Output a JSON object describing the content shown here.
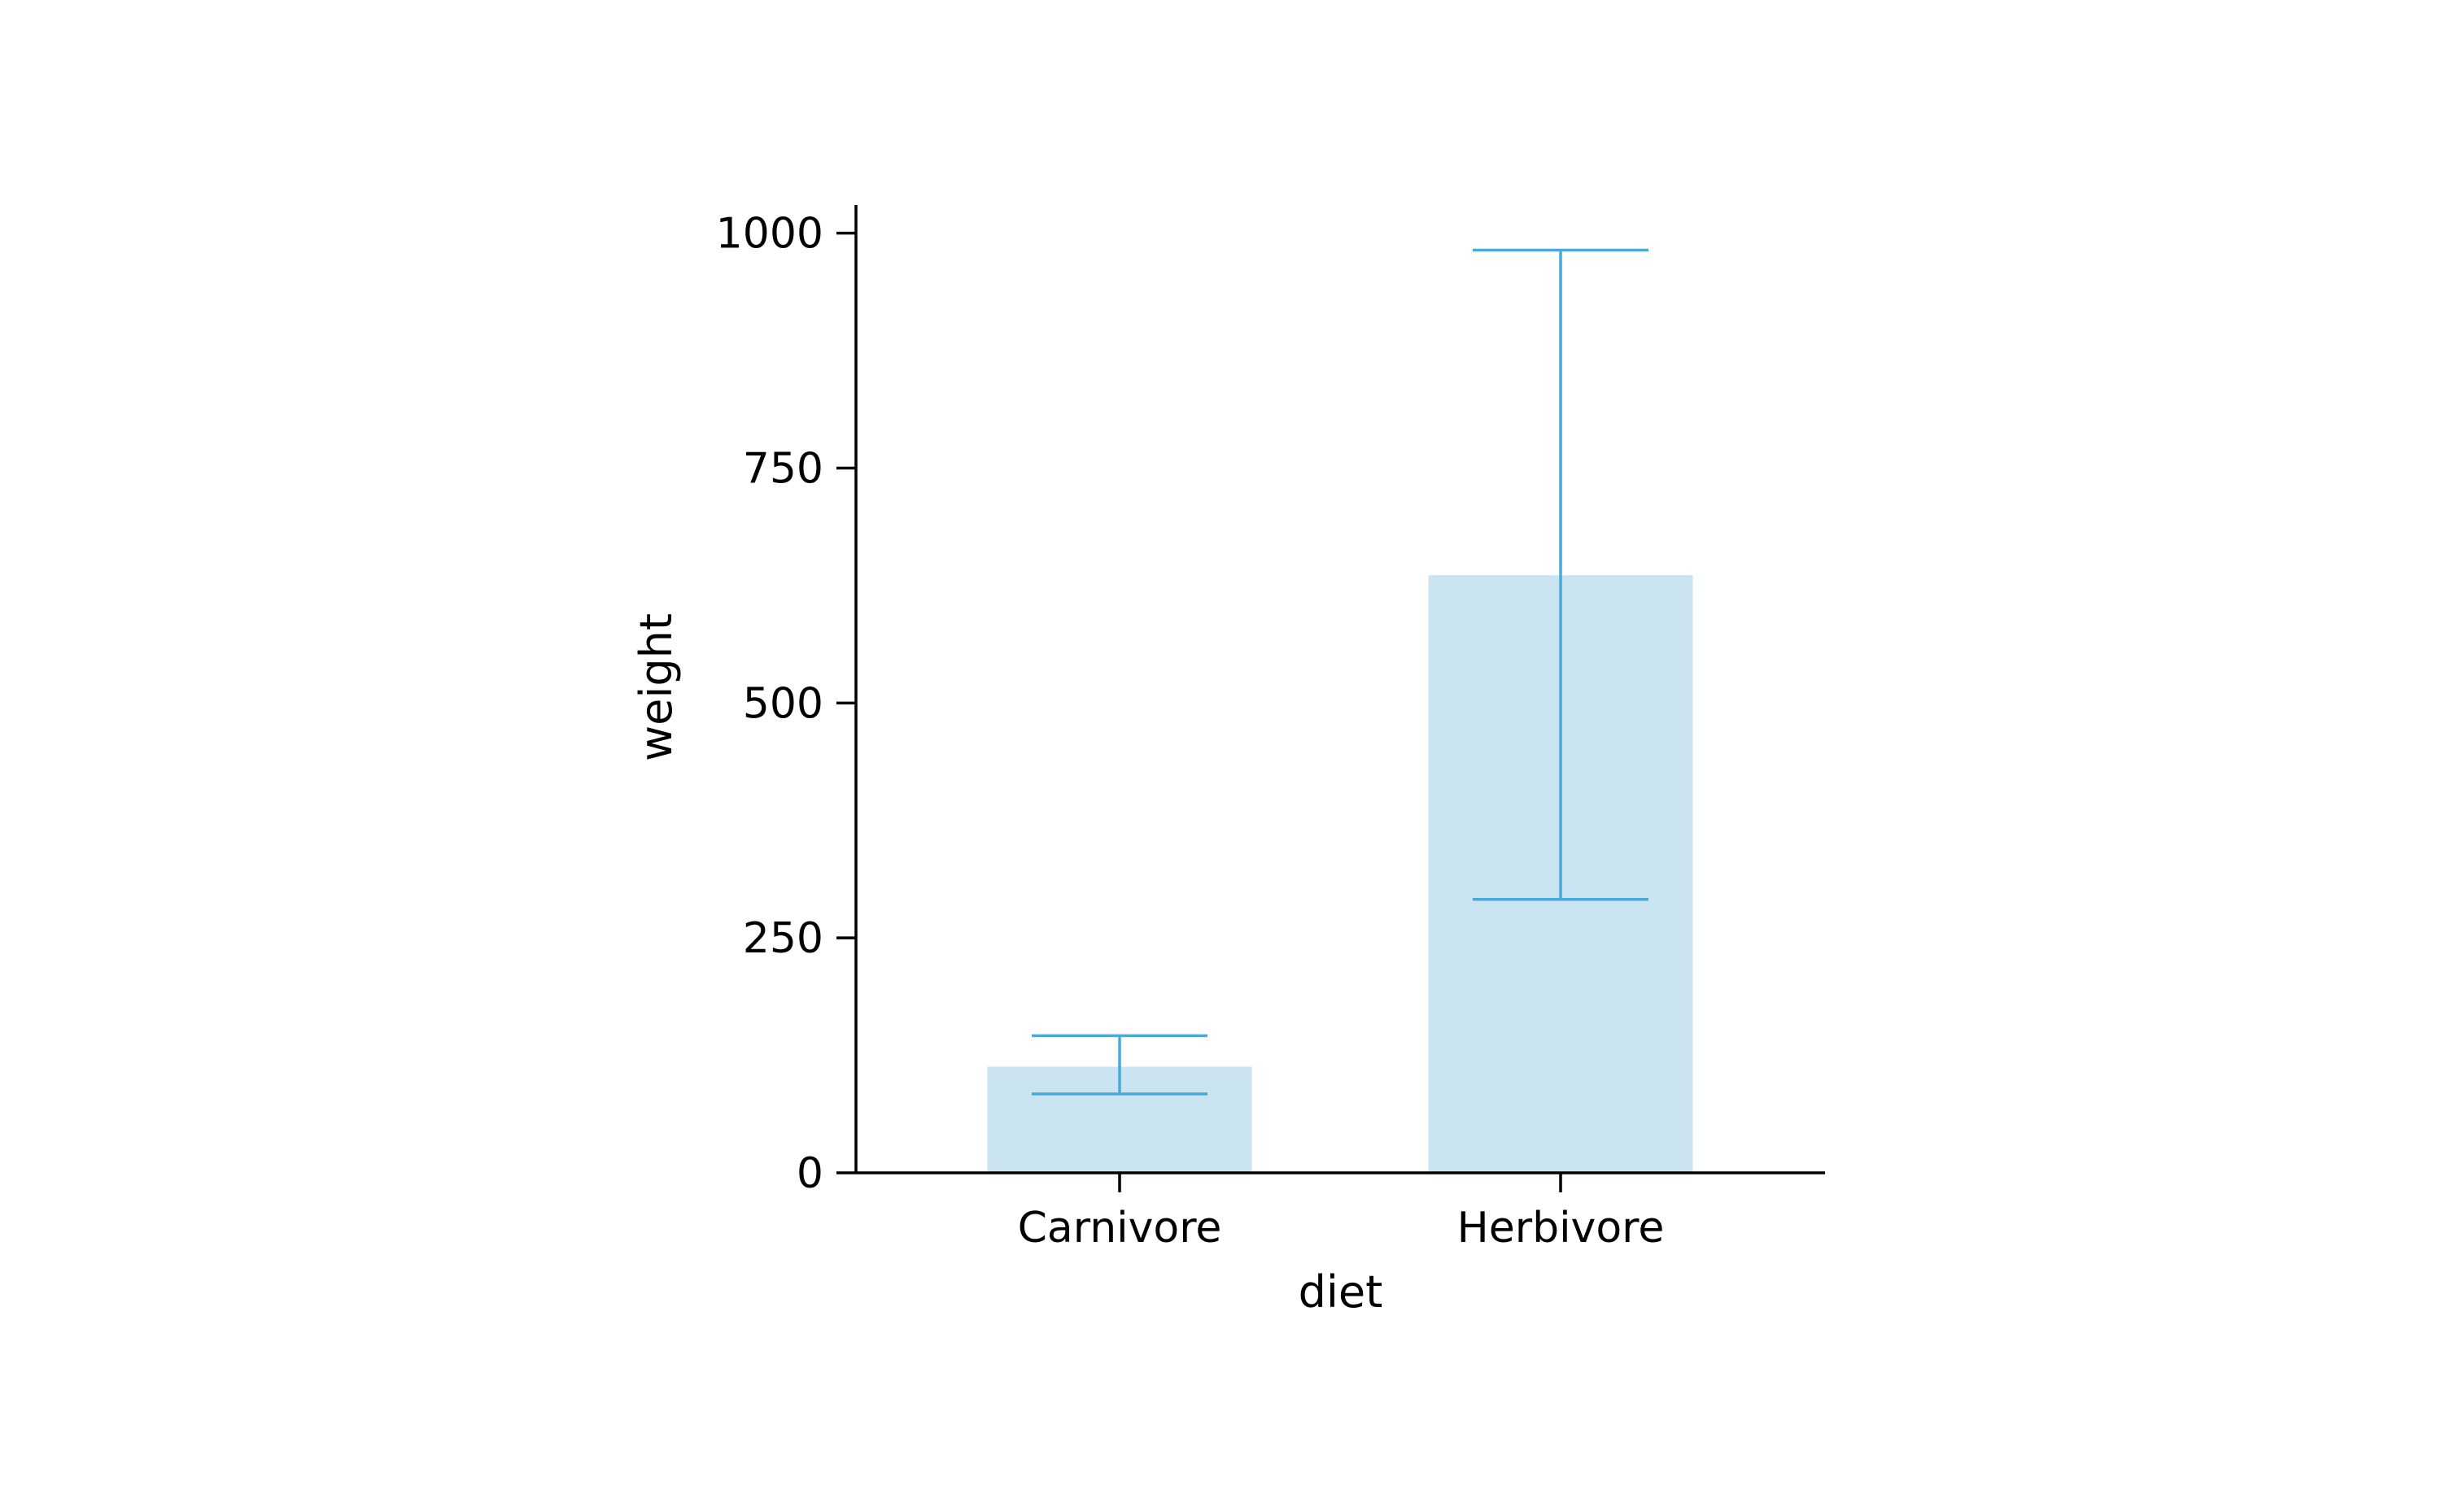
{
  "chart_data": {
    "type": "bar",
    "title": "",
    "xlabel": "diet",
    "ylabel": "weight",
    "categories": [
      "Carnivore",
      "Herbivore"
    ],
    "values": [
      113,
      636
    ],
    "error_bars": [
      {
        "category": "Carnivore",
        "low": 84,
        "high": 146
      },
      {
        "category": "Herbivore",
        "low": 291,
        "high": 982
      }
    ],
    "ylim": [
      0,
      1030
    ],
    "yticks": [
      0,
      250,
      500,
      750,
      1000
    ],
    "ytick_labels": [
      "0",
      "250",
      "500",
      "750",
      "1000"
    ],
    "grid": false,
    "legend": "none",
    "colors": {
      "bar_fill": "#cae5f1",
      "error_bar": "#4aa9d9",
      "axis": "#000000"
    }
  }
}
